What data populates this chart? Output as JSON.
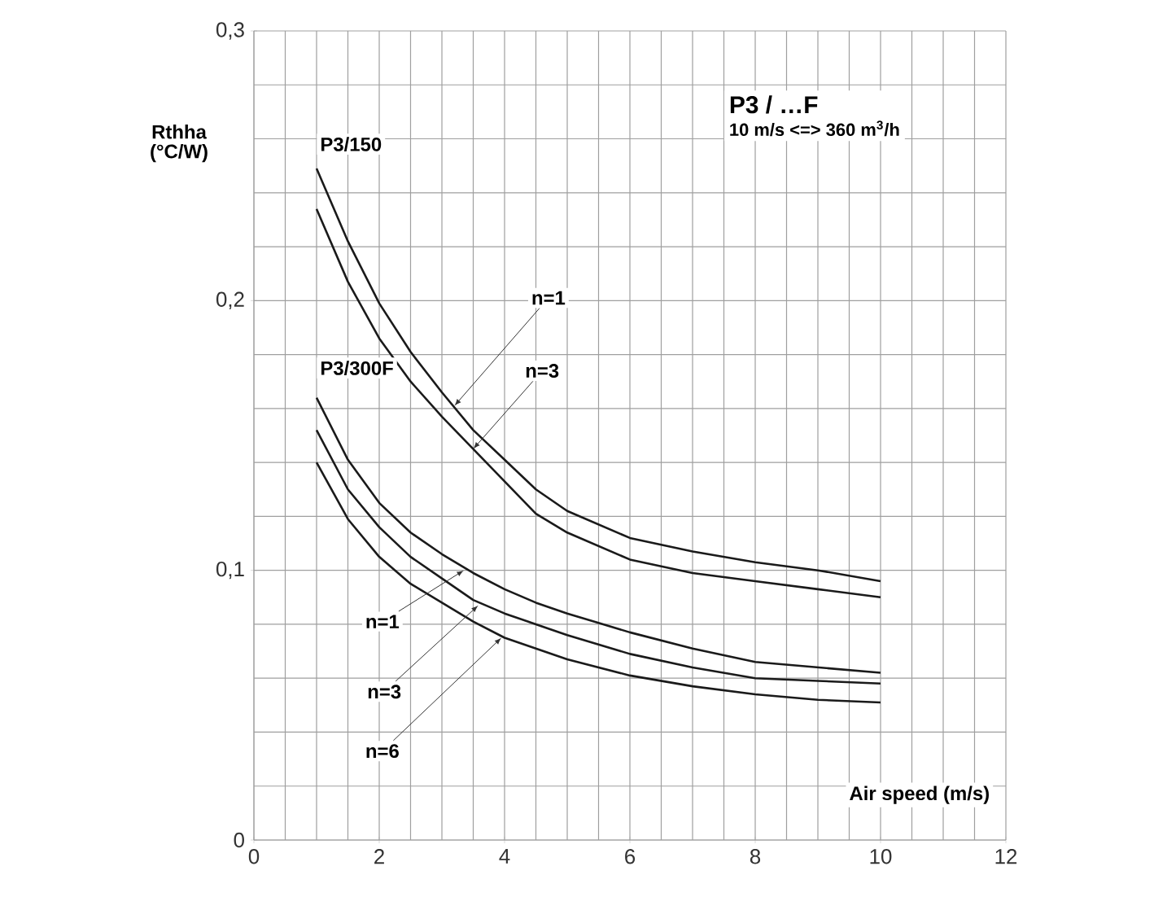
{
  "chart_data": {
    "type": "line",
    "title": "P3 / …F",
    "subtitle": "10 m/s <=> 360 m$^{3}$/h",
    "xlabel": "Air speed (m/s)",
    "ylabel": "Rthha (°C/W)",
    "x": [
      1,
      1.5,
      2,
      2.5,
      3,
      3.5,
      4,
      4.5,
      5,
      6,
      7,
      8,
      9,
      10
    ],
    "series": [
      {
        "color": "#1a1a1a",
        "values": [
          0.249,
          0.222,
          0.199,
          0.181,
          0.166,
          0.152,
          0.141,
          0.13,
          0.122,
          0.112,
          0.107,
          0.103,
          0.1,
          0.096
        ]
      },
      {
        "color": "#1a1a1a",
        "values": [
          0.234,
          0.207,
          0.186,
          0.17,
          0.157,
          0.145,
          0.133,
          0.121,
          0.114,
          0.104,
          0.099,
          0.096,
          0.093,
          0.09
        ]
      },
      {
        "color": "#1a1a1a",
        "values": [
          0.164,
          0.141,
          0.125,
          0.114,
          0.106,
          0.099,
          0.093,
          0.088,
          0.084,
          0.077,
          0.071,
          0.066,
          0.064,
          0.062
        ]
      },
      {
        "color": "#1a1a1a",
        "values": [
          0.152,
          0.13,
          0.116,
          0.105,
          0.097,
          0.089,
          0.084,
          0.08,
          0.076,
          0.069,
          0.064,
          0.06,
          0.059,
          0.058
        ]
      },
      {
        "color": "#1a1a1a",
        "values": [
          0.14,
          0.119,
          0.105,
          0.095,
          0.088,
          0.081,
          0.075,
          0.071,
          0.067,
          0.061,
          0.057,
          0.054,
          0.052,
          0.051
        ]
      }
    ],
    "annotations": [
      "P3/150",
      "P3/300F",
      {
        "text": "n=1",
        "x": 3.2,
        "y": 0.161
      },
      {
        "text": "n=3",
        "x": 3.5,
        "y": 0.145
      },
      {
        "text": "n=1",
        "x": 3.35,
        "y": 0.1
      },
      {
        "text": "n=3",
        "x": 3.58,
        "y": 0.087
      },
      {
        "text": "n=6",
        "x": 3.95,
        "y": 0.075
      }
    ],
    "xlim": [
      0,
      12
    ],
    "ylim": [
      0,
      0.3
    ],
    "xticks": [
      0,
      2,
      4,
      6,
      8,
      10,
      12
    ],
    "yticks": [
      0,
      {
        "value": 0.1,
        "label": "0,1"
      },
      {
        "value": 0.2,
        "label": "0,2"
      },
      {
        "value": 0.3,
        "label": "0,3"
      }
    ],
    "grid": true,
    "marker": "none",
    "line_style": "solid"
  }
}
